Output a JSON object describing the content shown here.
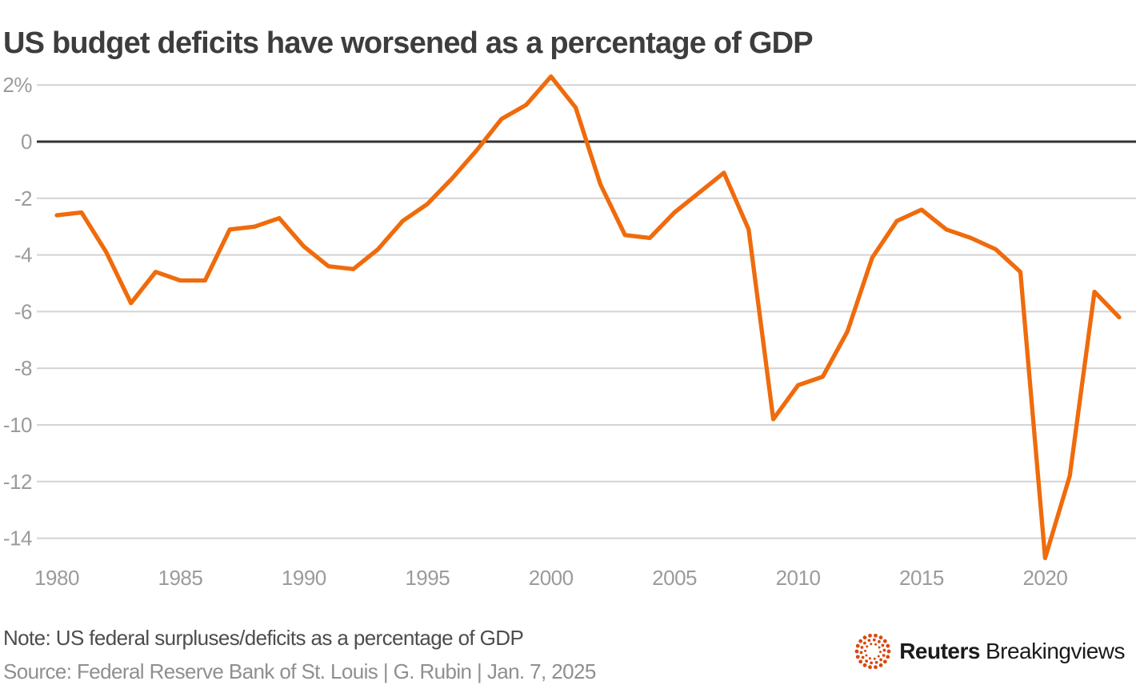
{
  "header": {
    "title": "US budget deficits have worsened as a percentage of GDP"
  },
  "footer": {
    "note": "Note: US federal surpluses/deficits as a percentage of GDP",
    "source": "Source: Federal Reserve Bank of St. Louis | G. Rubin | Jan. 7, 2025",
    "logo": {
      "brand": "Reuters",
      "suffix": "Breakingviews"
    }
  },
  "colors": {
    "line": "#ef6b0c",
    "grid": "#d3d3d3",
    "zero_line": "#333333",
    "tick_label": "#9b9b9b",
    "title": "#3d3d3d",
    "note": "#4d4d4d",
    "source": "#8f8f8f",
    "logo_dots": "#d8490f",
    "logo_text": "#1b1b1b"
  },
  "chart_data": {
    "type": "line",
    "title": "US budget deficits have worsened as a percentage of GDP",
    "series_name": "US federal surplus/deficit as a percentage of GDP",
    "xlabel": "",
    "ylabel": "",
    "unit": "% of GDP",
    "grid": "horizontal",
    "legend_position": "none",
    "ylim": [
      -15.5,
      2.8
    ],
    "xlim": [
      1979,
      2024
    ],
    "x": [
      1980,
      1981,
      1982,
      1983,
      1984,
      1985,
      1986,
      1987,
      1988,
      1989,
      1990,
      1991,
      1992,
      1993,
      1994,
      1995,
      1996,
      1997,
      1998,
      1999,
      2000,
      2001,
      2002,
      2003,
      2004,
      2005,
      2006,
      2007,
      2008,
      2009,
      2010,
      2011,
      2012,
      2013,
      2014,
      2015,
      2016,
      2017,
      2018,
      2019,
      2020,
      2021,
      2022,
      2023
    ],
    "values": [
      -2.6,
      -2.5,
      -3.9,
      -5.7,
      -4.6,
      -4.9,
      -4.9,
      -3.1,
      -3.0,
      -2.7,
      -3.7,
      -4.4,
      -4.5,
      -3.8,
      -2.8,
      -2.2,
      -1.3,
      -0.3,
      0.8,
      1.3,
      2.3,
      1.2,
      -1.5,
      -3.3,
      -3.4,
      -2.5,
      -1.8,
      -1.1,
      -3.1,
      -9.8,
      -8.6,
      -8.3,
      -6.7,
      -4.1,
      -2.8,
      -2.4,
      -3.1,
      -3.4,
      -3.8,
      -4.6,
      -14.7,
      -11.8,
      -5.3,
      -6.2
    ],
    "y_ticks": [
      {
        "value": 2,
        "label": "2%"
      },
      {
        "value": 0,
        "label": "0"
      },
      {
        "value": -2,
        "label": "-2"
      },
      {
        "value": -4,
        "label": "-4"
      },
      {
        "value": -6,
        "label": "-6"
      },
      {
        "value": -8,
        "label": "-8"
      },
      {
        "value": -10,
        "label": "-10"
      },
      {
        "value": -12,
        "label": "-12"
      },
      {
        "value": -14,
        "label": "-14"
      }
    ],
    "x_ticks": [
      1980,
      1985,
      1990,
      1995,
      2000,
      2005,
      2010,
      2015,
      2020
    ]
  }
}
